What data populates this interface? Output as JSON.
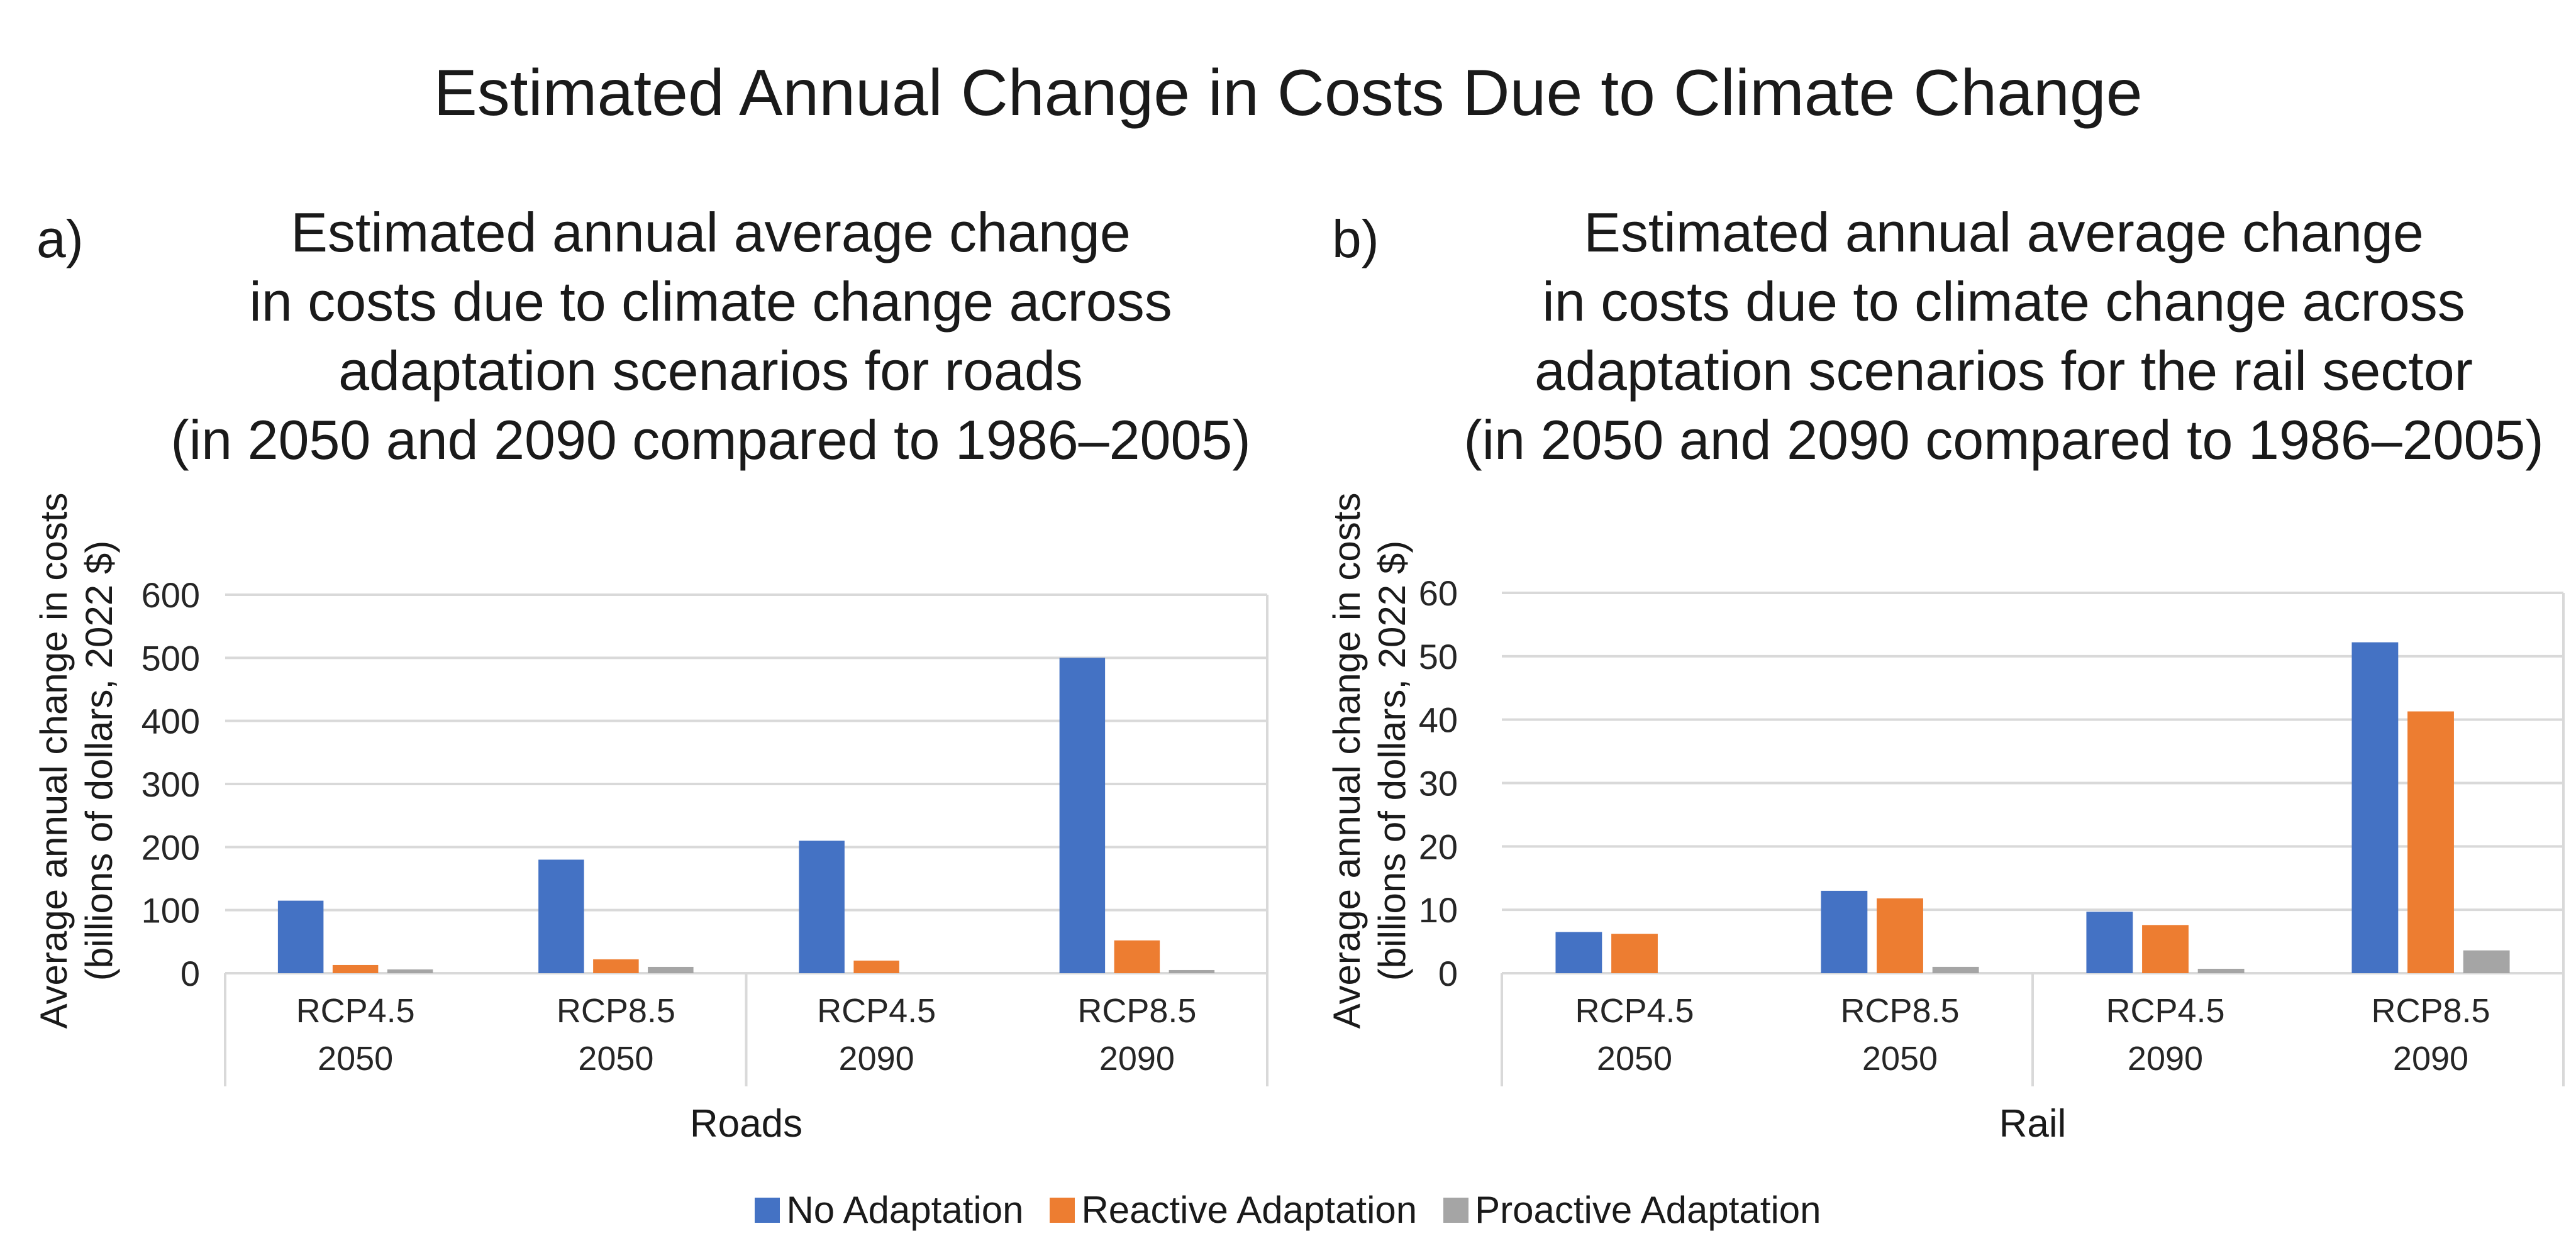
{
  "title": "Estimated Annual Change in Costs Due to Climate Change",
  "legend": [
    {
      "name": "No Adaptation",
      "color": "#4472C4"
    },
    {
      "name": "Reactive Adaptation",
      "color": "#ED7D31"
    },
    {
      "name": "Proactive Adaptation",
      "color": "#A5A5A5"
    }
  ],
  "panels": [
    {
      "letter": "a)",
      "title_lines": [
        "Estimated annual average change",
        "in costs due to climate change across",
        "adaptation scenarios for roads",
        "(in 2050 and 2090 compared to 1986–2005)"
      ],
      "ylabel_lines": [
        "Average annual change in costs",
        "(billions of dollars, 2022 $)"
      ],
      "xlabel": "Roads"
    },
    {
      "letter": "b)",
      "title_lines": [
        "Estimated annual average change",
        "in costs due to climate change across",
        "adaptation scenarios for the rail sector",
        "(in 2050 and 2090 compared to 1986–2005)"
      ],
      "ylabel_lines": [
        "Average annual change in costs",
        "(billions of dollars, 2022 $)"
      ],
      "xlabel": "Rail"
    }
  ],
  "chart_data": [
    {
      "type": "bar",
      "title": "Estimated annual average change in costs due to climate change across adaptation scenarios for roads (in 2050 and 2090 compared to 1986–2005)",
      "xlabel": "Roads",
      "ylabel": "Average annual change in costs (billions of dollars, 2022 $)",
      "categories": [
        [
          "RCP4.5",
          "2050"
        ],
        [
          "RCP8.5",
          "2050"
        ],
        [
          "RCP4.5",
          "2090"
        ],
        [
          "RCP8.5",
          "2090"
        ]
      ],
      "ylim": [
        0,
        600
      ],
      "yticks": [
        0,
        100,
        200,
        300,
        400,
        500,
        600
      ],
      "grid": true,
      "legend": "bottom",
      "series": [
        {
          "name": "No Adaptation",
          "color": "#4472C4",
          "values": [
            115,
            180,
            210,
            500
          ]
        },
        {
          "name": "Reactive Adaptation",
          "color": "#ED7D31",
          "values": [
            13,
            22,
            20,
            52
          ]
        },
        {
          "name": "Proactive Adaptation",
          "color": "#A5A5A5",
          "values": [
            6,
            10,
            0,
            5
          ]
        }
      ]
    },
    {
      "type": "bar",
      "title": "Estimated annual average change in costs due to climate change across adaptation scenarios for the rail sector (in 2050 and 2090 compared to 1986–2005)",
      "xlabel": "Rail",
      "ylabel": "Average annual change in costs (billions of dollars, 2022 $)",
      "categories": [
        [
          "RCP4.5",
          "2050"
        ],
        [
          "RCP8.5",
          "2050"
        ],
        [
          "RCP4.5",
          "2090"
        ],
        [
          "RCP8.5",
          "2090"
        ]
      ],
      "ylim": [
        0,
        60
      ],
      "yticks": [
        0,
        10,
        20,
        30,
        40,
        50,
        60
      ],
      "grid": true,
      "legend": "bottom",
      "series": [
        {
          "name": "No Adaptation",
          "color": "#4472C4",
          "values": [
            6.5,
            13,
            9.7,
            52.2
          ]
        },
        {
          "name": "Reactive Adaptation",
          "color": "#ED7D31",
          "values": [
            6.2,
            11.8,
            7.6,
            41.3
          ]
        },
        {
          "name": "Proactive Adaptation",
          "color": "#A5A5A5",
          "values": [
            0,
            1,
            0.7,
            3.6
          ]
        }
      ]
    }
  ]
}
